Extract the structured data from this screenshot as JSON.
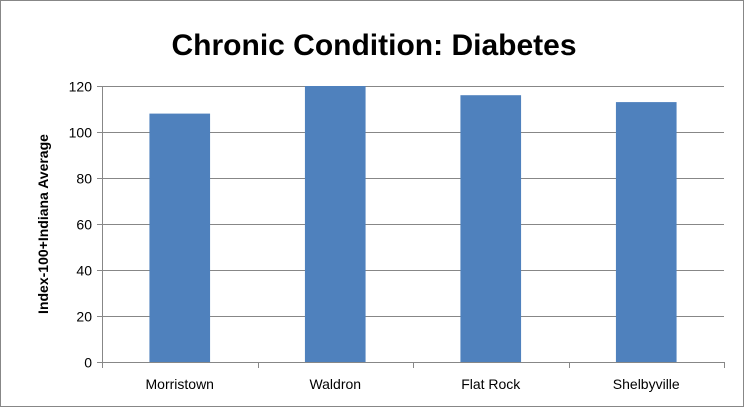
{
  "chart_data": {
    "type": "bar",
    "title": "Chronic Condition:  Diabetes",
    "ylabel": "Index-100+Indiana Average",
    "xlabel": "",
    "categories": [
      "Morristown",
      "Waldron",
      "Flat Rock",
      "Shelbyville"
    ],
    "values": [
      108,
      120,
      116,
      113
    ],
    "ylim": [
      0,
      120
    ],
    "yticks": [
      0,
      20,
      40,
      60,
      80,
      100,
      120
    ],
    "grid": true,
    "legend": "none",
    "bar_color": "#4f81bd"
  }
}
